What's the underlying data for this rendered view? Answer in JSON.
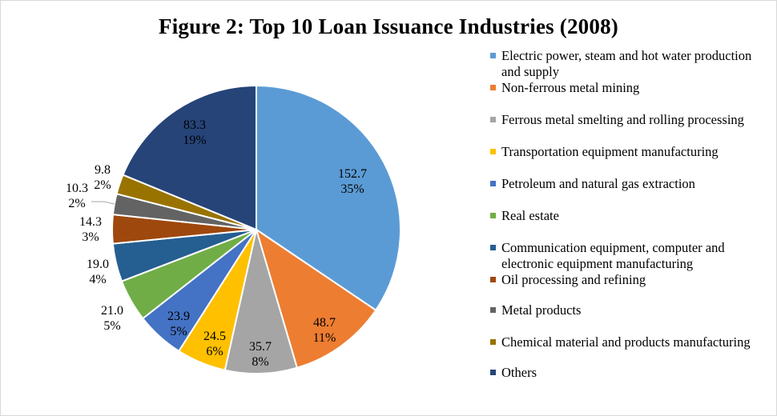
{
  "chart_data": {
    "type": "pie",
    "title": "Figure 2: Top 10 Loan Issuance Industries (2008)",
    "legend_position": "right",
    "slices": [
      {
        "label": "Electric power, steam and hot water production and supply",
        "value": 152.7,
        "percent": "35%",
        "color": "#5b9bd5"
      },
      {
        "label": "Non-ferrous metal mining",
        "value": 48.7,
        "percent": "11%",
        "color": "#ed7d31"
      },
      {
        "label": "Ferrous metal smelting and rolling processing",
        "value": 35.7,
        "percent": "8%",
        "color": "#a5a5a5"
      },
      {
        "label": "Transportation equipment manufacturing",
        "value": 24.5,
        "percent": "6%",
        "color": "#ffc000"
      },
      {
        "label": "Petroleum and natural gas extraction",
        "value": 23.9,
        "percent": "5%",
        "color": "#4472c4"
      },
      {
        "label": "Real estate",
        "value": 21.0,
        "percent": "5%",
        "color": "#70ad47"
      },
      {
        "label": "Communication equipment, computer and electronic equipment manufacturing",
        "value": 19.0,
        "percent": "4%",
        "color": "#255e91"
      },
      {
        "label": "Oil processing and refining",
        "value": 14.3,
        "percent": "3%",
        "color": "#9e480e"
      },
      {
        "label": "Metal products",
        "value": 10.3,
        "percent": "2%",
        "color": "#636363"
      },
      {
        "label": "Chemical material and products manufacturing",
        "value": 9.8,
        "percent": "2%",
        "color": "#997300"
      },
      {
        "label": "Others",
        "value": 83.3,
        "percent": "19%",
        "color": "#264478"
      }
    ]
  }
}
